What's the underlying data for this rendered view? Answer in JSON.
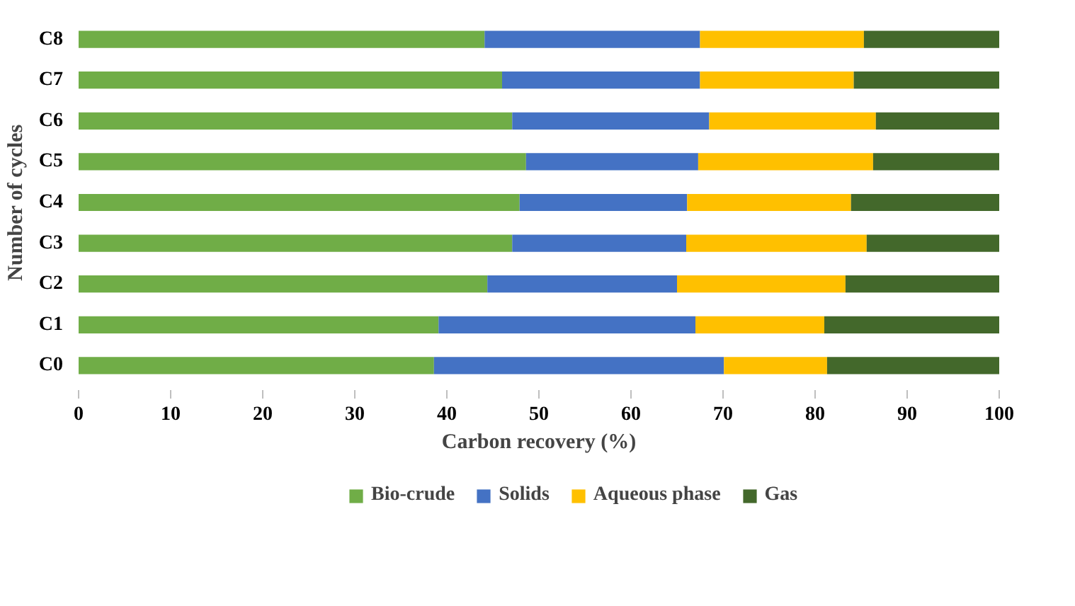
{
  "chart_data": {
    "type": "bar",
    "orientation": "horizontal",
    "stacked": true,
    "xlabel": "Carbon recovery (%)",
    "ylabel": "Number of cycles",
    "categories": [
      "C8",
      "C7",
      "C6",
      "C5",
      "C4",
      "C3",
      "C2",
      "C1",
      "C0"
    ],
    "series": [
      {
        "name": "Bio-crude",
        "color": "#70ad47",
        "values": [
          44.1,
          46.0,
          47.1,
          48.6,
          47.9,
          47.1,
          44.4,
          39.1,
          38.6
        ]
      },
      {
        "name": "Solids",
        "color": "#4472c4",
        "values": [
          23.4,
          21.5,
          21.4,
          18.7,
          18.2,
          18.9,
          20.6,
          27.9,
          31.5
        ]
      },
      {
        "name": "Aqueous phase",
        "color": "#ffc000",
        "values": [
          17.8,
          16.7,
          18.1,
          19.0,
          17.8,
          19.6,
          18.3,
          14.0,
          11.2
        ]
      },
      {
        "name": "Gas",
        "color": "#43682b",
        "values": [
          14.7,
          15.8,
          13.4,
          13.7,
          16.1,
          14.4,
          16.7,
          19.0,
          18.7
        ]
      }
    ],
    "xlim": [
      0,
      100
    ],
    "xticks": [
      0,
      10,
      20,
      30,
      40,
      50,
      60,
      70,
      80,
      90,
      100
    ],
    "grid": false,
    "legend": "bottom"
  }
}
